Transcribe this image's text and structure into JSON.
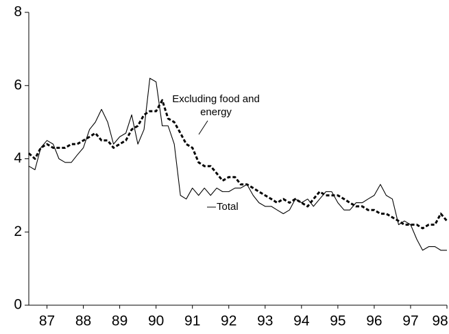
{
  "chart_data": {
    "type": "line",
    "x": [
      1987,
      1987.17,
      1987.33,
      1987.5,
      1987.67,
      1987.83,
      1988,
      1988.17,
      1988.33,
      1988.5,
      1988.67,
      1988.83,
      1989,
      1989.17,
      1989.33,
      1989.5,
      1989.67,
      1989.83,
      1990,
      1990.17,
      1990.33,
      1990.5,
      1990.67,
      1990.83,
      1991,
      1991.17,
      1991.33,
      1991.5,
      1991.67,
      1991.83,
      1992,
      1992.17,
      1992.33,
      1992.5,
      1992.67,
      1992.83,
      1993,
      1993.17,
      1993.33,
      1993.5,
      1993.67,
      1993.83,
      1994,
      1994.17,
      1994.33,
      1994.5,
      1994.67,
      1994.83,
      1995,
      1995.17,
      1995.33,
      1995.5,
      1995.67,
      1995.83,
      1996,
      1996.17,
      1996.33,
      1996.5,
      1996.67,
      1996.83,
      1997,
      1997.17,
      1997.33,
      1997.5,
      1997.67,
      1997.83,
      1998,
      1998.17,
      1998.33,
      1998.5
    ],
    "series": [
      {
        "name": "Total",
        "color": "#000000",
        "style": "solid",
        "values": [
          3.8,
          3.7,
          4.3,
          4.5,
          4.4,
          4.0,
          3.9,
          3.9,
          4.1,
          4.3,
          4.8,
          5.0,
          5.35,
          5.0,
          4.4,
          4.6,
          4.7,
          5.2,
          4.4,
          4.8,
          6.2,
          6.1,
          4.9,
          4.9,
          4.4,
          3.0,
          2.9,
          3.2,
          3.0,
          3.2,
          3.0,
          3.2,
          3.1,
          3.1,
          3.2,
          3.2,
          3.3,
          3.0,
          2.8,
          2.7,
          2.7,
          2.6,
          2.5,
          2.6,
          2.9,
          2.8,
          2.9,
          2.7,
          2.9,
          3.1,
          3.1,
          2.8,
          2.6,
          2.6,
          2.8,
          2.8,
          2.9,
          3.0,
          3.3,
          3.0,
          2.9,
          2.2,
          2.3,
          2.2,
          1.8,
          1.5,
          1.6,
          1.6,
          1.5,
          1.5
        ]
      },
      {
        "name": "Excluding food and energy",
        "color": "#000000",
        "style": "dashed",
        "values": [
          4.15,
          4.0,
          4.3,
          4.4,
          4.3,
          4.3,
          4.3,
          4.4,
          4.4,
          4.5,
          4.6,
          4.7,
          4.5,
          4.5,
          4.3,
          4.4,
          4.5,
          4.8,
          4.9,
          5.2,
          5.3,
          5.3,
          5.6,
          5.1,
          5.0,
          4.7,
          4.4,
          4.3,
          3.9,
          3.8,
          3.8,
          3.6,
          3.4,
          3.5,
          3.5,
          3.3,
          3.3,
          3.2,
          3.1,
          3.0,
          2.9,
          2.8,
          2.9,
          2.8,
          2.9,
          2.8,
          2.7,
          2.9,
          3.1,
          3.0,
          3.0,
          3.0,
          2.9,
          2.8,
          2.7,
          2.7,
          2.6,
          2.6,
          2.5,
          2.5,
          2.4,
          2.3,
          2.2,
          2.2,
          2.2,
          2.1,
          2.2,
          2.2,
          2.5,
          2.3
        ]
      }
    ],
    "xlim": [
      1987,
      1998.5
    ],
    "xticks": [
      {
        "value": 1987.5,
        "label": "87"
      },
      {
        "value": 1988.5,
        "label": "88"
      },
      {
        "value": 1989.5,
        "label": "89"
      },
      {
        "value": 1990.5,
        "label": "90"
      },
      {
        "value": 1991.5,
        "label": "91"
      },
      {
        "value": 1992.5,
        "label": "92"
      },
      {
        "value": 1993.5,
        "label": "93"
      },
      {
        "value": 1994.5,
        "label": "94"
      },
      {
        "value": 1995.5,
        "label": "95"
      },
      {
        "value": 1996.5,
        "label": "96"
      },
      {
        "value": 1997.5,
        "label": "97"
      },
      {
        "value": 1998.5,
        "label": "98"
      }
    ],
    "ylim": [
      0,
      8
    ],
    "yticks": [
      0,
      2,
      4,
      6,
      8
    ],
    "grid": false
  }
}
